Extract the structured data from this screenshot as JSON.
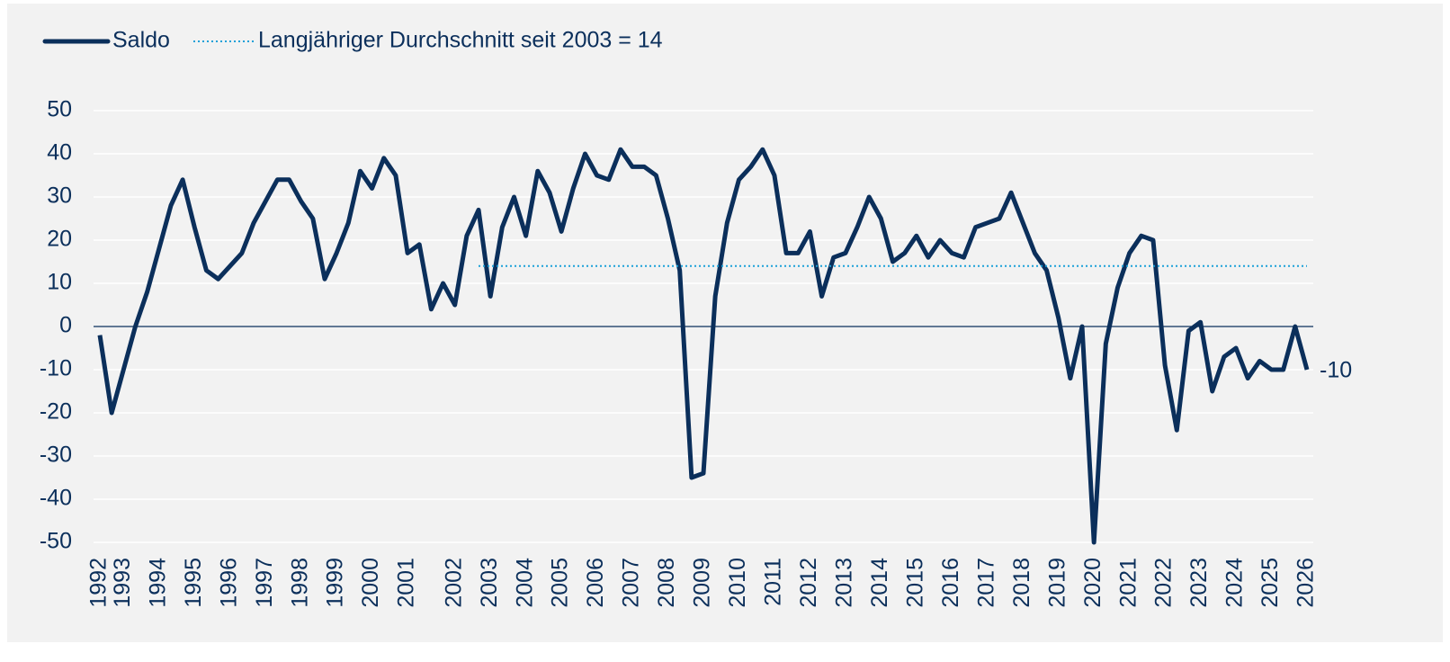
{
  "chart_data": {
    "type": "line",
    "categories": [
      "1992",
      null,
      "1993",
      null,
      null,
      "1994",
      null,
      null,
      "1995",
      null,
      null,
      "1996",
      null,
      null,
      "1997",
      null,
      null,
      "1998",
      null,
      null,
      "1999",
      null,
      null,
      "2000",
      null,
      null,
      "2001",
      null,
      null,
      null,
      "2002",
      null,
      null,
      "2003",
      null,
      null,
      "2004",
      null,
      null,
      "2005",
      null,
      null,
      "2006",
      null,
      null,
      "2007",
      null,
      null,
      "2008",
      null,
      null,
      "2009",
      null,
      null,
      "2010",
      null,
      null,
      "2011",
      null,
      null,
      "2012",
      null,
      null,
      "2013",
      null,
      null,
      "2014",
      null,
      null,
      "2015",
      null,
      null,
      "2016",
      null,
      null,
      "2017",
      null,
      null,
      "2018",
      null,
      null,
      "2019",
      null,
      null,
      "2020",
      null,
      null,
      "2021",
      null,
      null,
      "2022",
      null,
      null,
      "2023",
      null,
      null,
      "2024",
      null,
      null,
      "2025",
      null,
      null,
      "2026"
    ],
    "series": [
      {
        "name": "Saldo",
        "color": "#0b2f5b",
        "style": "solid",
        "values": [
          -2,
          -20,
          -10,
          0,
          8,
          18,
          28,
          34,
          23,
          13,
          11,
          14,
          17,
          24,
          29,
          34,
          34,
          29,
          25,
          11,
          17,
          24,
          36,
          32,
          39,
          35,
          17,
          19,
          4,
          10,
          5,
          21,
          27,
          7,
          23,
          30,
          21,
          36,
          31,
          22,
          32,
          40,
          35,
          34,
          41,
          37,
          37,
          35,
          25,
          13,
          -35,
          -34,
          7,
          24,
          34,
          37,
          41,
          35,
          17,
          17,
          22,
          7,
          16,
          17,
          23,
          30,
          25,
          15,
          17,
          21,
          16,
          20,
          17,
          16,
          23,
          24,
          25,
          31,
          24,
          17,
          13,
          2,
          -12,
          0,
          -50,
          -4,
          9,
          17,
          21,
          20,
          -9,
          -24,
          -1,
          1,
          -15,
          -7,
          -5,
          -12,
          -8,
          -10,
          -10,
          0,
          -10
        ]
      },
      {
        "name": "Langjähriger Durchschnitt seit 2003 = 14",
        "color": "#1aa0d8",
        "style": "dotted",
        "values": [
          null,
          null,
          null,
          null,
          null,
          null,
          null,
          null,
          null,
          null,
          null,
          null,
          null,
          null,
          null,
          null,
          null,
          null,
          null,
          null,
          null,
          null,
          null,
          null,
          null,
          null,
          null,
          null,
          null,
          null,
          null,
          null,
          14,
          14,
          14,
          14,
          14,
          14,
          14,
          14,
          14,
          14,
          14,
          14,
          14,
          14,
          14,
          14,
          14,
          14,
          14,
          14,
          14,
          14,
          14,
          14,
          14,
          14,
          14,
          14,
          14,
          14,
          14,
          14,
          14,
          14,
          14,
          14,
          14,
          14,
          14,
          14,
          14,
          14,
          14,
          14,
          14,
          14,
          14,
          14,
          14,
          14,
          14,
          14,
          14,
          14,
          14,
          14,
          14,
          14,
          14,
          14,
          14,
          14,
          14,
          14,
          14,
          14,
          14,
          14,
          14,
          14,
          14
        ]
      }
    ],
    "ylim": [
      -50,
      50
    ],
    "yticks": [
      -50,
      -40,
      -30,
      -20,
      -10,
      0,
      10,
      20,
      30,
      40,
      50
    ],
    "grid": true,
    "legend": "top-left"
  }
}
